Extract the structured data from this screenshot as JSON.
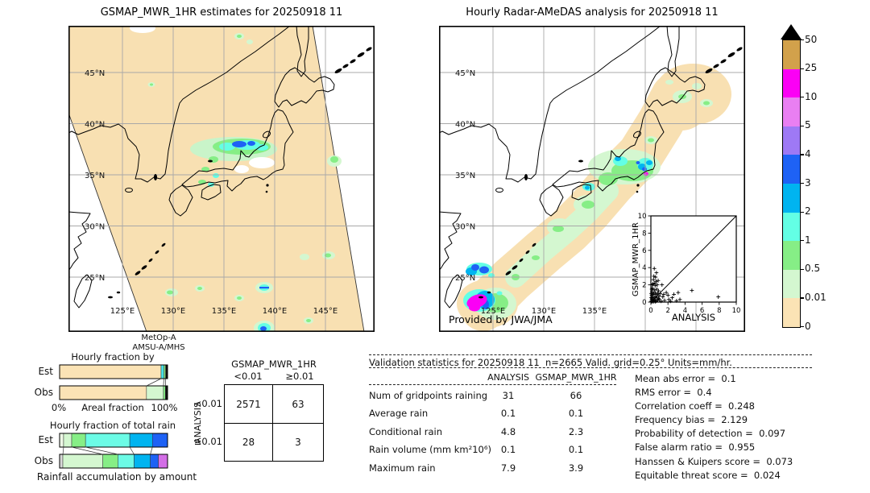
{
  "chart_data": [
    {
      "id": "left_map",
      "type": "heatmap",
      "title": "GSMAP_MWR_1HR estimates for 20250918 11",
      "sensor": [
        "MetOp-A",
        "AMSU-A/MHS"
      ],
      "lat_ticks": [
        "45°N",
        "40°N",
        "35°N",
        "30°N",
        "25°N"
      ],
      "lon_ticks": [
        "125°E",
        "130°E",
        "135°E",
        "140°E",
        "145°E"
      ],
      "legend": {
        "tick_labels": [
          "50",
          "25",
          "10",
          "5",
          "4",
          "3",
          "2",
          "1",
          "0.5",
          "0.01",
          "0"
        ],
        "band_colors": [
          "#d2a14b",
          "#fb00f5",
          "#e97ff2",
          "#9e79f5",
          "#1e62f5",
          "#00b4f0",
          "#63ffe5",
          "#86ee86",
          "#d4f7d0",
          "#fbe3b5"
        ],
        "over_color": "#000000",
        "units": "mm/hr"
      }
    },
    {
      "id": "right_map",
      "type": "heatmap",
      "title": "Hourly Radar-AMeDAS analysis for 20250918 11",
      "credit": "Provided by JWA/JMA",
      "lat_ticks": [
        "45°N",
        "40°N",
        "35°N",
        "30°N",
        "25°N"
      ],
      "lon_ticks": [
        "125°E",
        "130°E",
        "135°E"
      ]
    },
    {
      "id": "occurrence",
      "type": "bar",
      "title": "Hourly fraction by occurence",
      "categories": [
        "Est",
        "Obs"
      ],
      "xlabel": "Areal fraction",
      "x_min_label": "0%",
      "x_max_label": "100%",
      "series": [
        {
          "name": "Est",
          "segments": [
            {
              "color": "#fbe3b5",
              "pct": 94.0
            },
            {
              "color": "#45e0e6",
              "pct": 2.6
            },
            {
              "color": "#86ee86",
              "pct": 1.6
            },
            {
              "color": "#111111",
              "pct": 1.8
            }
          ]
        },
        {
          "name": "Obs",
          "segments": [
            {
              "color": "#fbe3b5",
              "pct": 80.5
            },
            {
              "color": "#d4f7d0",
              "pct": 15.7
            },
            {
              "color": "#86ee86",
              "pct": 1.8
            },
            {
              "color": "#111111",
              "pct": 2.0
            }
          ]
        }
      ]
    },
    {
      "id": "total_rain",
      "type": "bar",
      "title": "Hourly fraction of total rain",
      "caption": "Rainfall accumulation by amount",
      "categories": [
        "Est",
        "Obs"
      ],
      "series": [
        {
          "name": "Est",
          "segments": [
            {
              "color": "#eef9e6",
              "pct": 3.7
            },
            {
              "color": "#d4f7d0",
              "pct": 7.5
            },
            {
              "color": "#86ee86",
              "pct": 12.8
            },
            {
              "color": "#6cfbe6",
              "pct": 41.0
            },
            {
              "color": "#00b4f0",
              "pct": 21.0
            },
            {
              "color": "#1e62f5",
              "pct": 14.0
            }
          ]
        },
        {
          "name": "Obs",
          "segments": [
            {
              "color": "#d8d8d8",
              "pct": 3.0
            },
            {
              "color": "#d4f7d0",
              "pct": 37.0
            },
            {
              "color": "#86ee86",
              "pct": 14.0
            },
            {
              "color": "#6cfbe6",
              "pct": 15.0
            },
            {
              "color": "#00b4f0",
              "pct": 15.0
            },
            {
              "color": "#1e62f5",
              "pct": 7.5
            },
            {
              "color": "#d36ee6",
              "pct": 8.5
            }
          ]
        }
      ]
    },
    {
      "id": "contingency",
      "type": "table",
      "title": "GSMAP_MWR_1HR",
      "row_axis": "ANALYSIS",
      "col_headers": [
        "<0.01",
        "≥0.01"
      ],
      "row_headers": [
        "<0.01",
        "≥0.01"
      ],
      "values": [
        [
          "2571",
          "63"
        ],
        [
          "28",
          "3"
        ]
      ]
    },
    {
      "id": "scatter_inset",
      "type": "scatter",
      "xlabel": "ANALYSIS",
      "ylabel": "GSMAP_MWR_1HR",
      "xlim": [
        0,
        10
      ],
      "ylim": [
        0,
        10
      ],
      "ticks": [
        0,
        2,
        4,
        6,
        8,
        10
      ],
      "identity_line": true,
      "points": [
        [
          0.05,
          0.1
        ],
        [
          0.1,
          0.3
        ],
        [
          0.1,
          0.8
        ],
        [
          0.15,
          1.2
        ],
        [
          0.2,
          0.5
        ],
        [
          0.2,
          1.6
        ],
        [
          0.25,
          2.1
        ],
        [
          0.3,
          0.2
        ],
        [
          0.3,
          1.0
        ],
        [
          0.3,
          2.6
        ],
        [
          0.35,
          3.0
        ],
        [
          0.4,
          0.6
        ],
        [
          0.4,
          1.4
        ],
        [
          0.4,
          3.9
        ],
        [
          0.45,
          2.2
        ],
        [
          0.5,
          0.3
        ],
        [
          0.5,
          1.1
        ],
        [
          0.5,
          1.9
        ],
        [
          0.55,
          2.9
        ],
        [
          0.6,
          0.1
        ],
        [
          0.6,
          0.9
        ],
        [
          0.6,
          2.4
        ],
        [
          0.65,
          3.4
        ],
        [
          0.7,
          0.5
        ],
        [
          0.7,
          1.5
        ],
        [
          0.75,
          2.0
        ],
        [
          0.8,
          0.2
        ],
        [
          0.8,
          1.0
        ],
        [
          0.85,
          2.5
        ],
        [
          0.9,
          0.4
        ],
        [
          0.9,
          1.3
        ],
        [
          0.95,
          0.7
        ],
        [
          0.1,
          0.05
        ],
        [
          0.2,
          0.1
        ],
        [
          0.3,
          0.05
        ],
        [
          0.4,
          0.15
        ],
        [
          0.5,
          0.05
        ],
        [
          0.15,
          0.4
        ],
        [
          0.25,
          0.9
        ],
        [
          0.35,
          0.3
        ],
        [
          0.55,
          0.6
        ],
        [
          0.05,
          0.5
        ],
        [
          0.05,
          1.0
        ],
        [
          0.1,
          1.5
        ],
        [
          0.15,
          2.0
        ],
        [
          1.0,
          0.3
        ],
        [
          1.1,
          1.0
        ],
        [
          1.2,
          0.1
        ],
        [
          1.3,
          2.0
        ],
        [
          1.4,
          0.6
        ],
        [
          1.5,
          0.9
        ],
        [
          1.6,
          0.2
        ],
        [
          1.8,
          1.1
        ],
        [
          2.0,
          0.8
        ],
        [
          2.1,
          0.3
        ],
        [
          2.3,
          0.1
        ],
        [
          2.5,
          0.5
        ],
        [
          2.7,
          0.9
        ],
        [
          3.0,
          0.15
        ],
        [
          3.2,
          1.1
        ],
        [
          3.4,
          0.3
        ],
        [
          4.8,
          1.35
        ],
        [
          7.9,
          0.6
        ]
      ]
    },
    {
      "id": "validation_stats",
      "type": "table",
      "header": "Validation statistics for 20250918 11  n=2665 Valid. grid=0.25° Units=mm/hr.",
      "col_headers": [
        "ANALYSIS",
        "GSMAP_MWR_1HR"
      ],
      "rows": [
        [
          "Num of gridpoints raining",
          "31",
          "66"
        ],
        [
          "Average rain",
          "0.1",
          "0.1"
        ],
        [
          "Conditional rain",
          "4.8",
          "2.3"
        ],
        [
          "Rain volume (mm km²10⁶)",
          "0.1",
          "0.1"
        ],
        [
          "Maximum rain",
          "7.9",
          "3.9"
        ]
      ],
      "scores": [
        [
          "Mean abs error",
          "0.1"
        ],
        [
          "RMS error",
          "0.4"
        ],
        [
          "Correlation coeff",
          "0.248"
        ],
        [
          "Frequency bias",
          "2.129"
        ],
        [
          "Probability of detection",
          "0.097"
        ],
        [
          "False alarm ratio",
          "0.955"
        ],
        [
          "Hanssen & Kuipers score",
          "0.073"
        ],
        [
          "Equitable threat score",
          "0.024"
        ]
      ]
    }
  ]
}
